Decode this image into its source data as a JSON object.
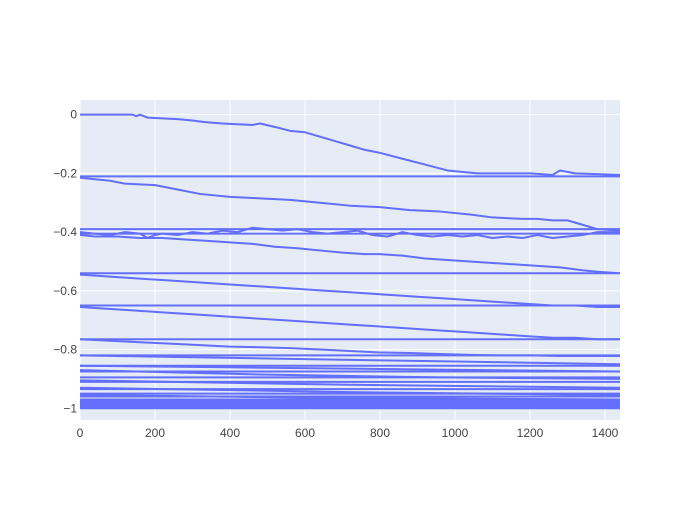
{
  "chart_data": {
    "type": "line",
    "title": "",
    "xlabel": "",
    "ylabel": "",
    "xlim": [
      0,
      1440
    ],
    "ylim": [
      -1.04,
      0.05
    ],
    "x_ticks": [
      0,
      200,
      400,
      600,
      800,
      1000,
      1200,
      1400
    ],
    "y_ticks": [
      0,
      -0.2,
      -0.4,
      -0.6,
      -0.8,
      -1
    ],
    "x_tick_labels": [
      "0",
      "200",
      "400",
      "600",
      "800",
      "1000",
      "1200",
      "1400"
    ],
    "y_tick_labels": [
      "0",
      "−0.2",
      "−0.4",
      "−0.6",
      "−0.8",
      "−1"
    ],
    "grid": true,
    "legend": "none",
    "colors": {
      "line": "#636efa",
      "plot_bg": "#e5ecf6",
      "grid": "#ffffff",
      "paper_bg": "#ffffff"
    },
    "series": [
      {
        "x": [
          0,
          140,
          150,
          160,
          180,
          260,
          300,
          330,
          380,
          460,
          480,
          530,
          560,
          600,
          640,
          680,
          720,
          760,
          800,
          860,
          920,
          980,
          1060,
          1200,
          1260,
          1280,
          1320,
          1440
        ],
        "y": [
          0,
          0,
          -0.005,
          0,
          -0.01,
          -0.015,
          -0.02,
          -0.025,
          -0.03,
          -0.035,
          -0.03,
          -0.045,
          -0.055,
          -0.06,
          -0.075,
          -0.09,
          -0.105,
          -0.12,
          -0.13,
          -0.15,
          -0.17,
          -0.19,
          -0.2,
          -0.2,
          -0.205,
          -0.19,
          -0.2,
          -0.205
        ]
      },
      {
        "x": [
          0,
          1440
        ],
        "y": [
          -0.21,
          -0.21
        ]
      },
      {
        "x": [
          0,
          40,
          80,
          120,
          200,
          260,
          320,
          400,
          480,
          560,
          640,
          720,
          800,
          880,
          960,
          1040,
          1100,
          1180,
          1220,
          1260,
          1300,
          1340,
          1380,
          1440
        ],
        "y": [
          -0.215,
          -0.22,
          -0.225,
          -0.235,
          -0.24,
          -0.255,
          -0.27,
          -0.28,
          -0.285,
          -0.29,
          -0.3,
          -0.31,
          -0.315,
          -0.325,
          -0.33,
          -0.34,
          -0.35,
          -0.355,
          -0.355,
          -0.36,
          -0.36,
          -0.375,
          -0.39,
          -0.395
        ]
      },
      {
        "x": [
          0,
          1440
        ],
        "y": [
          -0.39,
          -0.39
        ]
      },
      {
        "x": [
          0,
          1440
        ],
        "y": [
          -0.405,
          -0.405
        ]
      },
      {
        "x": [
          0,
          40,
          80,
          120,
          160,
          180,
          200,
          220,
          260,
          300,
          340,
          380,
          420,
          460,
          500,
          540,
          580,
          620,
          660,
          700,
          740,
          780,
          820,
          860,
          900,
          940,
          980,
          1020,
          1060,
          1100,
          1140,
          1180,
          1220,
          1260,
          1300,
          1340,
          1380,
          1440
        ],
        "y": [
          -0.4,
          -0.405,
          -0.41,
          -0.4,
          -0.405,
          -0.42,
          -0.41,
          -0.405,
          -0.41,
          -0.4,
          -0.405,
          -0.395,
          -0.4,
          -0.385,
          -0.39,
          -0.395,
          -0.39,
          -0.4,
          -0.405,
          -0.4,
          -0.395,
          -0.41,
          -0.415,
          -0.4,
          -0.41,
          -0.415,
          -0.41,
          -0.415,
          -0.41,
          -0.42,
          -0.415,
          -0.42,
          -0.41,
          -0.42,
          -0.415,
          -0.41,
          -0.4,
          -0.4
        ]
      },
      {
        "x": [
          0,
          40,
          100,
          160,
          220,
          280,
          340,
          400,
          460,
          520,
          580,
          620,
          660,
          700,
          760,
          800,
          860,
          920,
          980,
          1040,
          1100,
          1160,
          1220,
          1280,
          1340,
          1380,
          1440
        ],
        "y": [
          -0.41,
          -0.415,
          -0.415,
          -0.42,
          -0.42,
          -0.425,
          -0.43,
          -0.435,
          -0.44,
          -0.45,
          -0.455,
          -0.46,
          -0.465,
          -0.47,
          -0.475,
          -0.475,
          -0.48,
          -0.49,
          -0.495,
          -0.5,
          -0.505,
          -0.51,
          -0.515,
          -0.52,
          -0.53,
          -0.535,
          -0.54
        ]
      },
      {
        "x": [
          0,
          1440
        ],
        "y": [
          -0.54,
          -0.54
        ]
      },
      {
        "x": [
          0,
          60,
          120,
          180,
          240,
          300,
          360,
          420,
          480,
          540,
          600,
          660,
          720,
          780,
          840,
          900,
          960,
          1020,
          1080,
          1140,
          1200,
          1260,
          1320,
          1380,
          1440
        ],
        "y": [
          -0.545,
          -0.55,
          -0.555,
          -0.56,
          -0.565,
          -0.57,
          -0.575,
          -0.58,
          -0.585,
          -0.59,
          -0.595,
          -0.6,
          -0.605,
          -0.61,
          -0.615,
          -0.62,
          -0.625,
          -0.63,
          -0.635,
          -0.64,
          -0.645,
          -0.65,
          -0.65,
          -0.655,
          -0.655
        ]
      },
      {
        "x": [
          0,
          1440
        ],
        "y": [
          -0.65,
          -0.65
        ]
      },
      {
        "x": [
          0,
          60,
          120,
          180,
          240,
          300,
          360,
          420,
          480,
          540,
          600,
          660,
          720,
          780,
          840,
          900,
          960,
          1020,
          1080,
          1140,
          1200,
          1260,
          1320,
          1380,
          1440
        ],
        "y": [
          -0.655,
          -0.66,
          -0.665,
          -0.67,
          -0.675,
          -0.68,
          -0.685,
          -0.69,
          -0.695,
          -0.7,
          -0.705,
          -0.71,
          -0.715,
          -0.72,
          -0.725,
          -0.73,
          -0.735,
          -0.74,
          -0.745,
          -0.75,
          -0.755,
          -0.76,
          -0.76,
          -0.765,
          -0.765
        ]
      },
      {
        "x": [
          0,
          1440
        ],
        "y": [
          -0.765,
          -0.765
        ]
      },
      {
        "x": [
          0,
          80,
          160,
          240,
          320,
          400,
          480,
          560,
          640,
          720,
          800,
          880,
          960,
          1040,
          1120,
          1200,
          1280,
          1360,
          1440
        ],
        "y": [
          -0.765,
          -0.77,
          -0.775,
          -0.78,
          -0.785,
          -0.79,
          -0.792,
          -0.795,
          -0.8,
          -0.805,
          -0.81,
          -0.812,
          -0.815,
          -0.818,
          -0.82,
          -0.82,
          -0.822,
          -0.822,
          -0.822
        ]
      },
      {
        "x": [
          0,
          1440
        ],
        "y": [
          -0.82,
          -0.82
        ]
      },
      {
        "x": [
          0,
          240,
          480,
          720,
          960,
          1200,
          1440
        ],
        "y": [
          -0.82,
          -0.825,
          -0.83,
          -0.835,
          -0.84,
          -0.845,
          -0.85
        ]
      },
      {
        "x": [
          0,
          1440
        ],
        "y": [
          -0.855,
          -0.855
        ]
      },
      {
        "x": [
          0,
          360,
          720,
          1080,
          1440
        ],
        "y": [
          -0.855,
          -0.86,
          -0.865,
          -0.87,
          -0.875
        ]
      },
      {
        "x": [
          0,
          1440
        ],
        "y": [
          -0.875,
          -0.875
        ]
      },
      {
        "x": [
          0,
          480,
          960,
          1440
        ],
        "y": [
          -0.87,
          -0.885,
          -0.895,
          -0.9
        ]
      },
      {
        "x": [
          0,
          1440
        ],
        "y": [
          -0.895,
          -0.895
        ]
      },
      {
        "x": [
          0,
          1440
        ],
        "y": [
          -0.91,
          -0.91
        ]
      },
      {
        "x": [
          0,
          720,
          1440
        ],
        "y": [
          -0.905,
          -0.92,
          -0.93
        ]
      },
      {
        "x": [
          0,
          1440
        ],
        "y": [
          -0.935,
          -0.935
        ]
      },
      {
        "x": [
          0,
          720,
          1440
        ],
        "y": [
          -0.93,
          -0.945,
          -0.955
        ]
      },
      {
        "x": [
          0,
          1440
        ],
        "y": [
          -0.95,
          -0.95
        ]
      },
      {
        "x": [
          0,
          1440
        ],
        "y": [
          -0.96,
          -0.96
        ]
      },
      {
        "x": [
          0,
          720,
          1440
        ],
        "y": [
          -0.955,
          -0.965,
          -0.97
        ]
      },
      {
        "x": [
          0,
          1440
        ],
        "y": [
          -0.97,
          -0.97
        ]
      },
      {
        "x": [
          0,
          1440
        ],
        "y": [
          -0.975,
          -0.975
        ]
      },
      {
        "x": [
          0,
          1440
        ],
        "y": [
          -0.98,
          -0.98
        ]
      },
      {
        "x": [
          0,
          1440
        ],
        "y": [
          -0.985,
          -0.985
        ]
      },
      {
        "x": [
          0,
          1440
        ],
        "y": [
          -0.99,
          -0.99
        ]
      },
      {
        "x": [
          0,
          1440
        ],
        "y": [
          -0.995,
          -0.995
        ]
      },
      {
        "x": [
          0,
          1440
        ],
        "y": [
          -1.0,
          -1.0
        ]
      }
    ]
  }
}
